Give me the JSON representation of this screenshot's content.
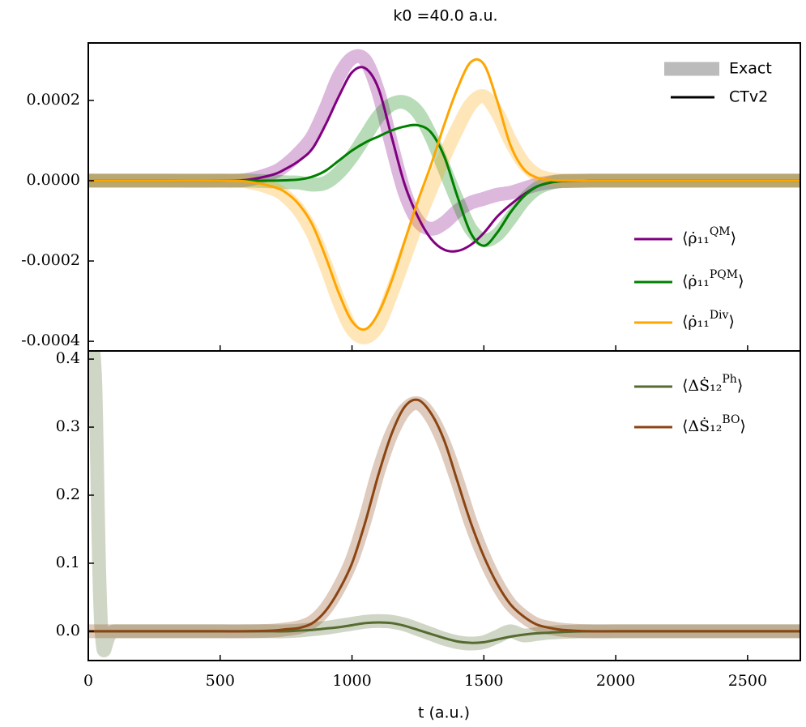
{
  "chart_data": [
    {
      "type": "line",
      "title": "k0 =40.0 a.u.",
      "x": [
        0,
        25,
        50,
        100,
        300,
        500,
        600,
        700,
        750,
        800,
        850,
        900,
        950,
        1000,
        1050,
        1100,
        1150,
        1200,
        1250,
        1300,
        1350,
        1400,
        1450,
        1500,
        1550,
        1600,
        1650,
        1700,
        1750,
        1800,
        1900,
        2000,
        2200,
        2500,
        2700
      ],
      "xlim": [
        0,
        2700
      ],
      "xticks": [
        0,
        500,
        1000,
        1500,
        2000,
        2500
      ],
      "ylim": [
        -0.000424,
        0.000343
      ],
      "yticks": [
        0.0002,
        {
          "value": 0,
          "label": "0.0000"
        },
        -0.0002,
        -0.0004
      ],
      "legend_styles": [
        "Exact",
        "CTv2"
      ],
      "exact_color": "#bbbbbb",
      "series": [
        {
          "name": "⟨ρ̇₁₁QM⟩",
          "color": "#800080",
          "values": [
            0,
            0,
            0,
            0,
            0,
            0,
            2e-06,
            1.5e-05,
            3e-05,
            5e-05,
            8e-05,
            0.00014,
            0.00021,
            0.00027,
            0.00028,
            0.00023,
            0.00011,
            -1e-05,
            -9e-05,
            -0.000145,
            -0.000172,
            -0.000175,
            -0.00016,
            -0.00013,
            -9e-05,
            -6e-05,
            -3.5e-05,
            -1.5e-05,
            -5e-06,
            -1e-06,
            0,
            0,
            0,
            0,
            0
          ],
          "exact": [
            0,
            0,
            0,
            0,
            0,
            0,
            2e-06,
            2e-05,
            4e-05,
            7e-05,
            0.00011,
            0.00018,
            0.00026,
            0.000305,
            0.0003,
            0.00022,
            9e-05,
            -3e-05,
            -0.0001,
            -0.00012,
            -0.000105,
            -7.5e-05,
            -5.5e-05,
            -4.5e-05,
            -3.5e-05,
            -3e-05,
            -2e-05,
            -1e-05,
            -4e-06,
            -1e-06,
            0,
            0,
            0,
            0,
            0
          ]
        },
        {
          "name": "⟨ρ̇₁₁PQM⟩",
          "color": "#008000",
          "values": [
            0,
            0,
            0,
            0,
            0,
            0,
            0,
            0,
            1e-06,
            3e-06,
            1e-05,
            2.5e-05,
            5e-05,
            7.5e-05,
            9.5e-05,
            0.00011,
            0.000125,
            0.000135,
            0.000138,
            0.00012,
            6e-05,
            -4e-05,
            -0.00013,
            -0.000162,
            -0.00013,
            -8e-05,
            -4e-05,
            -1.5e-05,
            -5e-06,
            -1e-06,
            0,
            0,
            0,
            0,
            0
          ],
          "exact": [
            0,
            0,
            0,
            0,
            0,
            0,
            0,
            -2e-06,
            -4e-06,
            -5e-06,
            -1e-05,
            -5e-06,
            2e-05,
            6e-05,
            0.00011,
            0.00016,
            0.00019,
            0.000195,
            0.00017,
            0.00011,
            3e-05,
            -5e-05,
            -0.00012,
            -0.000148,
            -0.000135,
            -9.5e-05,
            -5e-05,
            -2e-05,
            -6e-06,
            -1e-06,
            0,
            0,
            0,
            0,
            0
          ]
        },
        {
          "name": "⟨ρ̇₁₁Div⟩",
          "color": "#ffa500",
          "values": [
            0,
            0,
            0,
            0,
            0,
            0,
            -2e-06,
            -1.5e-05,
            -3e-05,
            -6e-05,
            -0.00011,
            -0.00019,
            -0.00028,
            -0.00035,
            -0.00037,
            -0.00033,
            -0.00025,
            -0.00015,
            -5e-05,
            4e-05,
            0.00014,
            0.00023,
            0.000295,
            0.00029,
            0.0002,
            9e-05,
            3e-05,
            8e-06,
            2e-06,
            0,
            0,
            0,
            0,
            0,
            0
          ],
          "exact": [
            0,
            0,
            0,
            0,
            0,
            0,
            -2e-06,
            -2e-05,
            -4e-05,
            -7.5e-05,
            -0.00013,
            -0.00021,
            -0.0003,
            -0.00037,
            -0.00039,
            -0.00036,
            -0.00028,
            -0.00019,
            -0.0001,
            -2e-05,
            6e-05,
            0.00013,
            0.00019,
            0.00021,
            0.00017,
            0.0001,
            4.5e-05,
            1.5e-05,
            4e-06,
            1e-06,
            0,
            0,
            0,
            0,
            0
          ]
        }
      ]
    },
    {
      "type": "line",
      "xlabel": "t (a.u.)",
      "x": [
        0,
        25,
        50,
        100,
        300,
        500,
        600,
        700,
        750,
        800,
        850,
        900,
        950,
        1000,
        1050,
        1100,
        1150,
        1200,
        1250,
        1300,
        1350,
        1400,
        1450,
        1500,
        1550,
        1600,
        1650,
        1700,
        1750,
        1800,
        1900,
        2000,
        2200,
        2500,
        2700
      ],
      "xlim": [
        0,
        2700
      ],
      "xticks": [
        0,
        500,
        1000,
        1500,
        2000,
        2500
      ],
      "ylim": [
        -0.043,
        0.412
      ],
      "yticks": [
        {
          "value": 0,
          "label": "0.0"
        },
        0.1,
        0.2,
        0.3,
        0.4
      ],
      "series": [
        {
          "name": "⟨ΔṠ₁₂Ph⟩",
          "color": "#556b2f",
          "values": [
            0,
            0,
            0,
            0,
            0,
            0,
            0,
            0,
            0,
            0.001,
            0.002,
            0.004,
            0.006,
            0.009,
            0.012,
            0.013,
            0.012,
            0.008,
            0.002,
            -0.004,
            -0.01,
            -0.015,
            -0.017,
            -0.016,
            -0.012,
            -0.008,
            -0.005,
            -0.003,
            -0.002,
            -0.001,
            0,
            0,
            0,
            0,
            0
          ],
          "exact": [
            0.42,
            0.38,
            0,
            0,
            0,
            0,
            0,
            0,
            0,
            0.001,
            0.003,
            0.005,
            0.008,
            0.011,
            0.014,
            0.015,
            0.014,
            0.01,
            0.003,
            -0.004,
            -0.011,
            -0.016,
            -0.018,
            -0.016,
            -0.008,
            0,
            -0.006,
            -0.004,
            -0.002,
            -0.001,
            0,
            0,
            0,
            0,
            0
          ]
        },
        {
          "name": "⟨ΔṠ₁₂BO⟩",
          "color": "#8b4513",
          "values": [
            0,
            0,
            0,
            0,
            0,
            0,
            0,
            0.001,
            0.003,
            0.005,
            0.012,
            0.03,
            0.06,
            0.1,
            0.16,
            0.23,
            0.29,
            0.33,
            0.34,
            0.32,
            0.28,
            0.22,
            0.16,
            0.11,
            0.07,
            0.04,
            0.022,
            0.01,
            0.005,
            0.002,
            0,
            0,
            0,
            0,
            0
          ],
          "exact": [
            0,
            0,
            0,
            0,
            0,
            0,
            0,
            0.001,
            0.003,
            0.006,
            0.014,
            0.033,
            0.064,
            0.105,
            0.165,
            0.235,
            0.29,
            0.325,
            0.335,
            0.315,
            0.275,
            0.22,
            0.16,
            0.11,
            0.07,
            0.04,
            0.022,
            0.01,
            0.005,
            0.002,
            0,
            0,
            0,
            0,
            0
          ]
        }
      ]
    }
  ]
}
